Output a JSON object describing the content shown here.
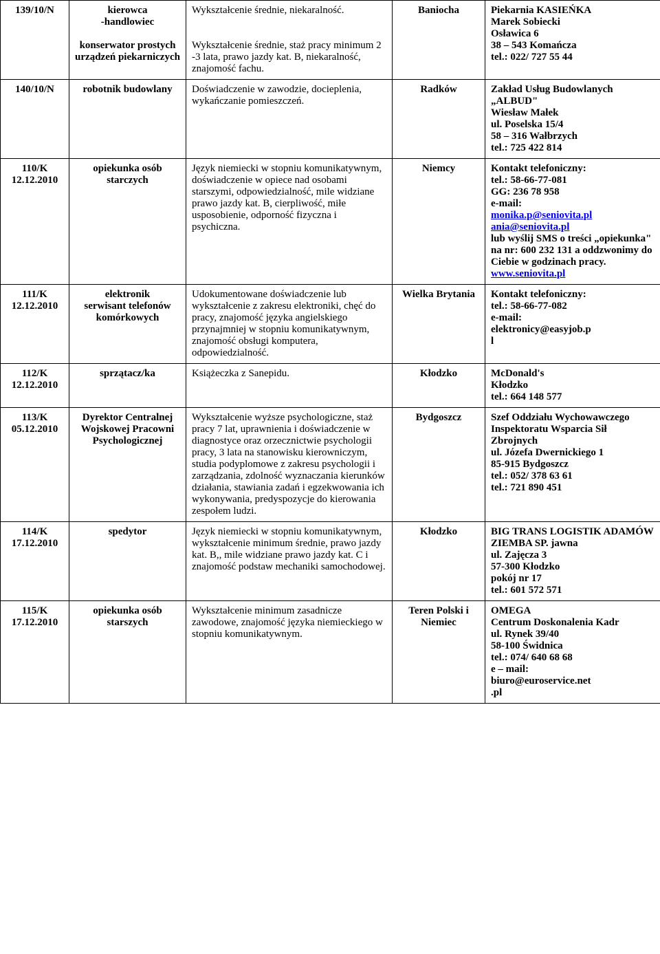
{
  "rows": [
    {
      "id": "139/10/N",
      "position": "kierowca\n-handlowiec\n\nkonserwator prostych urządzeń piekarniczych",
      "requirements": "Wykształcenie średnie, niekaralność.\n\n\nWykształcenie średnie, staż pracy minimum 2 -3 lata, prawo jazdy kat. B, niekaralność, znajomość fachu.",
      "location": "Baniocha",
      "employer": "Piekarnia KASIEŃKA\nMarek Sobiecki\nOsławica 6\n38 – 543 Komańcza\ntel.: 022/ 727 55 44"
    },
    {
      "id": "140/10/N",
      "position": "robotnik budowlany",
      "requirements": "Doświadczenie w zawodzie, docieplenia, wykańczanie pomieszczeń.",
      "location": "Radków",
      "employer": "Zakład Usług Budowlanych\n„ALBUD\"\nWiesław Małek\nul. Poselska 15/4\n58 – 316 Wałbrzych\ntel.: 725 422 814"
    },
    {
      "id": "110/K\n12.12.2010",
      "position": "opiekunka osób starczych",
      "requirements": "Język niemiecki w stopniu komunikatywnym, doświadczenie w opiece nad osobami starszymi, odpowiedzialność, mile widziane prawo jazdy kat. B, cierpliwość, miłe usposobienie, odporność fizyczna i psychiczna.",
      "location": "Niemcy",
      "employer_pre": "Kontakt telefoniczny:\ntel.: 58-66-77-081\nGG: 236 78 958\ne-mail:",
      "links": [
        {
          "text": "monika.p@seniovita.pl",
          "href": "mailto:monika.p@seniovita.pl"
        },
        {
          "text": "ania@seniovita.pl",
          "href": "mailto:ania@seniovita.pl"
        }
      ],
      "employer_mid": "lub wyślij SMS o treści „opiekunka\" na nr: 600 232 131 a oddzwonimy do Ciebie w godzinach pracy.",
      "link_after": {
        "text": "www.seniovita.pl",
        "href": "http://www.seniovita.pl"
      }
    },
    {
      "id": "111/K\n12.12.2010",
      "position": "elektronik\nserwisant telefonów komórkowych",
      "requirements": "Udokumentowane doświadczenie lub wykształcenie z zakresu elektroniki, chęć do pracy, znajomość języka angielskiego przynajmniej w stopniu komunikatywnym, znajomość obsługi komputera, odpowiedzialność.",
      "location": "Wielka Brytania",
      "employer": "Kontakt telefoniczny:\ntel.: 58-66-77-082\ne-mail:\nelektronicy@easyjob.p\nl"
    },
    {
      "id": "112/K\n12.12.2010",
      "position": "sprzątacz/ka",
      "requirements": "Książeczka z Sanepidu.",
      "location": "Kłodzko",
      "employer": "McDonald's\nKłodzko\ntel.: 664 148 577"
    },
    {
      "id": "113/K\n05.12.2010",
      "position": "Dyrektor Centralnej Wojskowej Pracowni Psychologicznej",
      "requirements": "Wykształcenie wyższe psychologiczne, staż pracy 7 lat, uprawnienia i doświadczenie w diagnostyce oraz orzecznictwie psychologii pracy, 3 lata na stanowisku kierowniczym, studia podyplomowe z zakresu psychologii i zarządzania, zdolność wyznaczania kierunków działania, stawiania zadań i egzekwowania ich wykonywania, predyspozycje do kierowania zespołem ludzi.",
      "location": "Bydgoszcz",
      "employer": "Szef Oddziału Wychowawczego Inspektoratu Wsparcia Sił Zbrojnych\nul. Józefa Dwernickiego 1\n85-915 Bydgoszcz\ntel.: 052/ 378 63 61\ntel.: 721 890 451"
    },
    {
      "id": "114/K\n17.12.2010",
      "position": "spedytor",
      "requirements": "Język niemiecki w stopniu komunikatywnym, wykształcenie minimum średnie, prawo jazdy kat. B,, mile widziane prawo jazdy kat. C i znajomość podstaw mechaniki samochodowej.",
      "location": "Kłodzko",
      "employer": "BIG TRANS LOGISTIK ADAMÓW ZIEMBA SP. jawna\nul. Zajęcza 3\n57-300 Kłodzko\npokój nr 17\ntel.: 601 572 571"
    },
    {
      "id": "115/K\n17.12.2010",
      "position": "opiekunka osób starszych",
      "requirements": "Wykształcenie minimum zasadnicze zawodowe, znajomość języka niemieckiego w stopniu komunikatywnym.",
      "location": "Teren Polski i Niemiec",
      "employer": "OMEGA\nCentrum Doskonalenia Kadr\nul. Rynek 39/40\n58-100 Świdnica\ntel.: 074/ 640 68 68\ne – mail:\nbiuro@euroservice.net\n.pl"
    }
  ]
}
